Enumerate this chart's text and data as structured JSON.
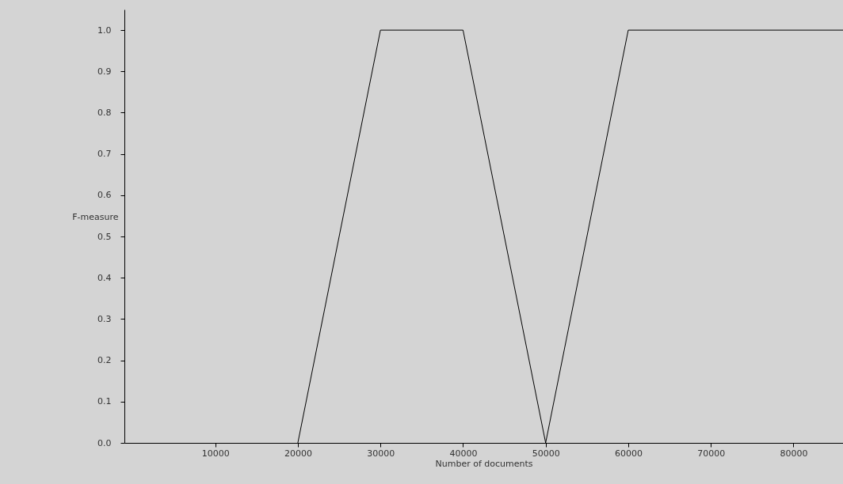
{
  "chart_data": {
    "type": "line",
    "xlabel": "Number of documents",
    "ylabel": "F-measure",
    "x": [
      20000,
      30000,
      40000,
      50000,
      60000,
      86000
    ],
    "series": [
      {
        "color": "#000000",
        "values": [
          0,
          1,
          1,
          0,
          1,
          1
        ]
      }
    ],
    "xlim": [
      -1000,
      86000
    ],
    "xticks": [
      10000,
      20000,
      30000,
      40000,
      50000,
      60000,
      70000,
      80000
    ],
    "ylim": [
      0,
      1.05
    ],
    "yticks": [
      {
        "value": 0,
        "label": "0.0"
      },
      {
        "value": 0.1,
        "label": "0.1"
      },
      {
        "value": 0.2,
        "label": "0.2"
      },
      {
        "value": 0.3,
        "label": "0.3"
      },
      {
        "value": 0.4,
        "label": "0.4"
      },
      {
        "value": 0.5,
        "label": "0.5"
      },
      {
        "value": 0.6,
        "label": "0.6"
      },
      {
        "value": 0.7,
        "label": "0.7"
      },
      {
        "value": 0.8,
        "label": "0.8"
      },
      {
        "value": 0.9,
        "label": "0.9"
      },
      {
        "value": 1,
        "label": "1.0"
      }
    ],
    "grid": false,
    "marker": "none",
    "line_style": "solid"
  }
}
